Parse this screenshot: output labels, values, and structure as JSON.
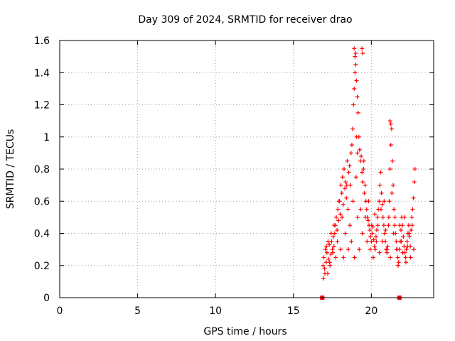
{
  "chart_data": {
    "type": "scatter",
    "title": "Day 309 of 2024, SRMTID for receiver drao",
    "xlabel": "GPS time / hours",
    "ylabel": "SRMTID / TECUs",
    "xlim": [
      0,
      24
    ],
    "ylim": [
      0,
      1.6
    ],
    "xticks": [
      0,
      5,
      10,
      15,
      20
    ],
    "xtick_labels": [
      "0",
      "5",
      "10",
      "15",
      "20"
    ],
    "yticks": [
      0,
      0.2,
      0.4,
      0.6,
      0.8,
      1.0,
      1.2,
      1.4,
      1.6
    ],
    "ytick_labels": [
      "0",
      "0.2",
      "0.4",
      "0.6",
      "0.8",
      "1",
      "1.2",
      "1.4",
      "1.6"
    ],
    "grid": true,
    "marker": "plus",
    "series": [
      {
        "name": "SRMTID",
        "color": "#ff0000",
        "x": [
          16.9,
          16.95,
          17.0,
          17.05,
          17.1,
          17.15,
          17.2,
          17.25,
          17.3,
          17.35,
          17.4,
          17.45,
          17.5,
          17.55,
          17.6,
          17.65,
          17.7,
          17.75,
          17.8,
          17.85,
          17.9,
          17.95,
          18.0,
          18.05,
          18.1,
          18.15,
          18.2,
          18.25,
          18.3,
          18.35,
          18.4,
          18.45,
          18.5,
          18.55,
          18.6,
          18.65,
          18.7,
          18.75,
          18.8,
          18.85,
          18.9,
          18.95,
          19.0,
          19.05,
          19.1,
          19.15,
          19.2,
          19.25,
          19.3,
          19.35,
          19.4,
          19.45,
          19.5,
          19.55,
          19.6,
          19.65,
          19.7,
          19.75,
          19.8,
          19.85,
          19.9,
          19.95,
          20.0,
          20.05,
          20.1,
          20.15,
          20.2,
          20.25,
          20.3,
          20.35,
          20.4,
          20.45,
          20.5,
          20.55,
          20.6,
          20.65,
          20.7,
          20.75,
          20.8,
          20.85,
          20.9,
          20.95,
          21.0,
          21.05,
          21.1,
          21.15,
          21.2,
          21.25,
          21.3,
          21.35,
          21.4,
          21.45,
          21.5,
          21.55,
          21.6,
          21.65,
          21.7,
          21.75,
          21.8,
          21.85,
          21.9,
          21.95,
          22.0,
          22.05,
          22.1,
          22.15,
          22.2,
          22.25,
          22.3,
          22.35,
          22.4,
          22.45,
          22.5,
          22.55,
          22.6,
          22.65,
          22.7,
          22.75,
          22.8,
          16.92,
          17.02,
          17.12,
          17.22,
          17.32,
          17.42,
          17.52,
          17.62,
          17.72,
          17.82,
          17.92,
          18.02,
          18.12,
          18.22,
          18.32,
          18.42,
          18.52,
          18.62,
          18.72,
          18.82,
          18.92,
          19.02,
          19.12,
          19.22,
          19.32,
          19.42,
          19.52,
          19.62,
          19.72,
          19.82,
          19.92,
          20.02,
          20.12,
          20.22,
          20.32,
          20.42,
          20.52,
          20.62,
          20.72,
          20.82,
          20.92,
          21.02,
          21.12,
          21.22,
          21.32,
          21.42,
          21.52,
          21.62,
          21.72,
          21.82,
          21.92,
          22.02,
          22.12,
          22.22,
          22.32,
          22.42,
          22.52,
          22.62,
          22.72,
          18.9,
          18.95,
          19.0,
          19.4,
          19.45,
          19.05,
          19.1,
          21.2,
          21.25,
          16.85,
          21.8
        ],
        "y": [
          0.2,
          0.25,
          0.18,
          0.3,
          0.22,
          0.28,
          0.15,
          0.24,
          0.33,
          0.2,
          0.27,
          0.35,
          0.3,
          0.38,
          0.32,
          0.4,
          0.45,
          0.5,
          0.42,
          0.55,
          0.48,
          0.6,
          0.52,
          0.7,
          0.65,
          0.75,
          0.58,
          0.8,
          0.68,
          0.72,
          0.62,
          0.85,
          0.55,
          0.78,
          0.82,
          0.7,
          0.9,
          0.95,
          1.05,
          1.2,
          1.3,
          1.4,
          1.45,
          1.35,
          1.25,
          1.15,
          1.0,
          0.92,
          0.85,
          0.88,
          0.78,
          0.72,
          0.8,
          0.65,
          0.7,
          0.6,
          0.55,
          0.5,
          0.48,
          0.45,
          0.42,
          0.38,
          0.35,
          0.4,
          0.44,
          0.36,
          0.32,
          0.3,
          0.38,
          0.42,
          0.5,
          0.55,
          0.6,
          0.7,
          0.78,
          0.65,
          0.58,
          0.5,
          0.45,
          0.4,
          0.35,
          0.3,
          0.28,
          0.32,
          0.45,
          0.6,
          0.8,
          0.95,
          1.05,
          0.85,
          0.7,
          0.55,
          0.45,
          0.4,
          0.35,
          0.3,
          0.25,
          0.22,
          0.3,
          0.35,
          0.42,
          0.5,
          0.45,
          0.38,
          0.32,
          0.28,
          0.25,
          0.3,
          0.35,
          0.4,
          0.45,
          0.38,
          0.32,
          0.42,
          0.5,
          0.55,
          0.62,
          0.72,
          0.8,
          0.12,
          0.15,
          0.32,
          0.35,
          0.22,
          0.4,
          0.28,
          0.45,
          0.25,
          0.35,
          0.6,
          0.3,
          0.5,
          0.25,
          0.4,
          0.7,
          0.3,
          0.45,
          0.35,
          0.6,
          0.25,
          0.75,
          0.5,
          0.3,
          0.55,
          0.4,
          0.85,
          0.5,
          0.35,
          0.6,
          0.3,
          0.45,
          0.25,
          0.52,
          0.35,
          0.45,
          0.28,
          0.55,
          0.35,
          0.6,
          0.42,
          0.3,
          0.5,
          0.25,
          0.65,
          0.4,
          0.5,
          0.3,
          0.2,
          0.45,
          0.35,
          0.28,
          0.5,
          0.22,
          0.32,
          0.4,
          0.25,
          0.45,
          0.3,
          1.55,
          1.5,
          1.52,
          1.55,
          1.52,
          1.0,
          0.9,
          1.1,
          1.08,
          0.0,
          0.0
        ]
      }
    ]
  }
}
